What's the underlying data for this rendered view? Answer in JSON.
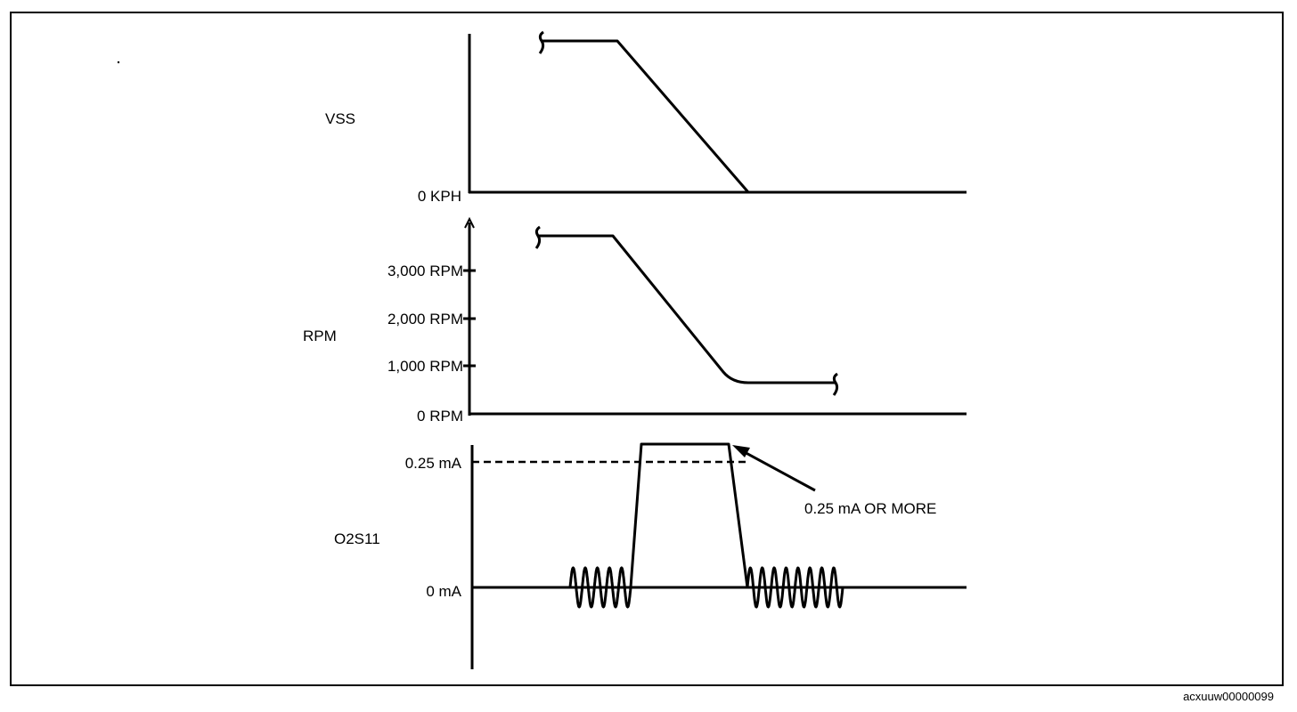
{
  "figure_code": "acxuuw00000099",
  "panels": {
    "vss": {
      "label": "VSS",
      "ticks": [
        "0 KPH"
      ]
    },
    "rpm": {
      "label": "RPM",
      "ticks": [
        "3,000 RPM",
        "2,000 RPM",
        "1,000 RPM",
        "0 RPM"
      ]
    },
    "o2s11": {
      "label": "O2S11",
      "ticks": [
        "0.25 mA",
        "0 mA"
      ],
      "annotation": "0.25 mA OR MORE"
    }
  },
  "colors": {
    "line": "#000000",
    "background": "#ffffff"
  }
}
